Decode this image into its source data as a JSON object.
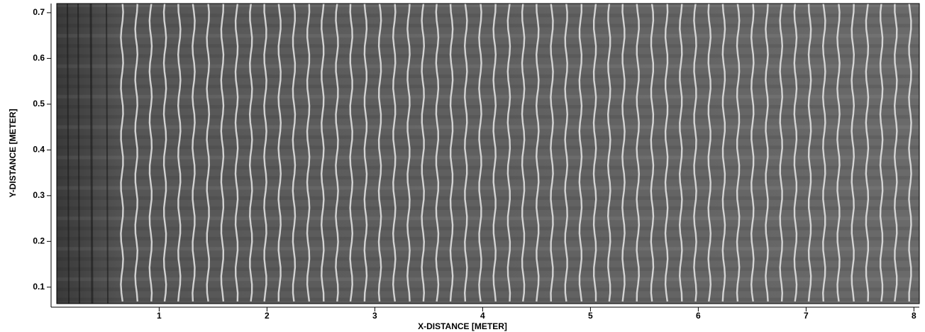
{
  "chart_data": {
    "type": "image",
    "xlabel": "X-DISTANCE [METER]",
    "ylabel": "Y-DISTANCE [METER]",
    "xlim": [
      0.05,
      8.05
    ],
    "xticks": [
      1,
      2,
      3,
      4,
      5,
      6,
      7,
      8
    ],
    "ylim": [
      0.064,
      0.72
    ],
    "yticks": [
      0.1,
      0.2,
      0.3,
      0.4,
      0.5,
      0.6,
      0.7
    ],
    "colormap": "gray"
  }
}
